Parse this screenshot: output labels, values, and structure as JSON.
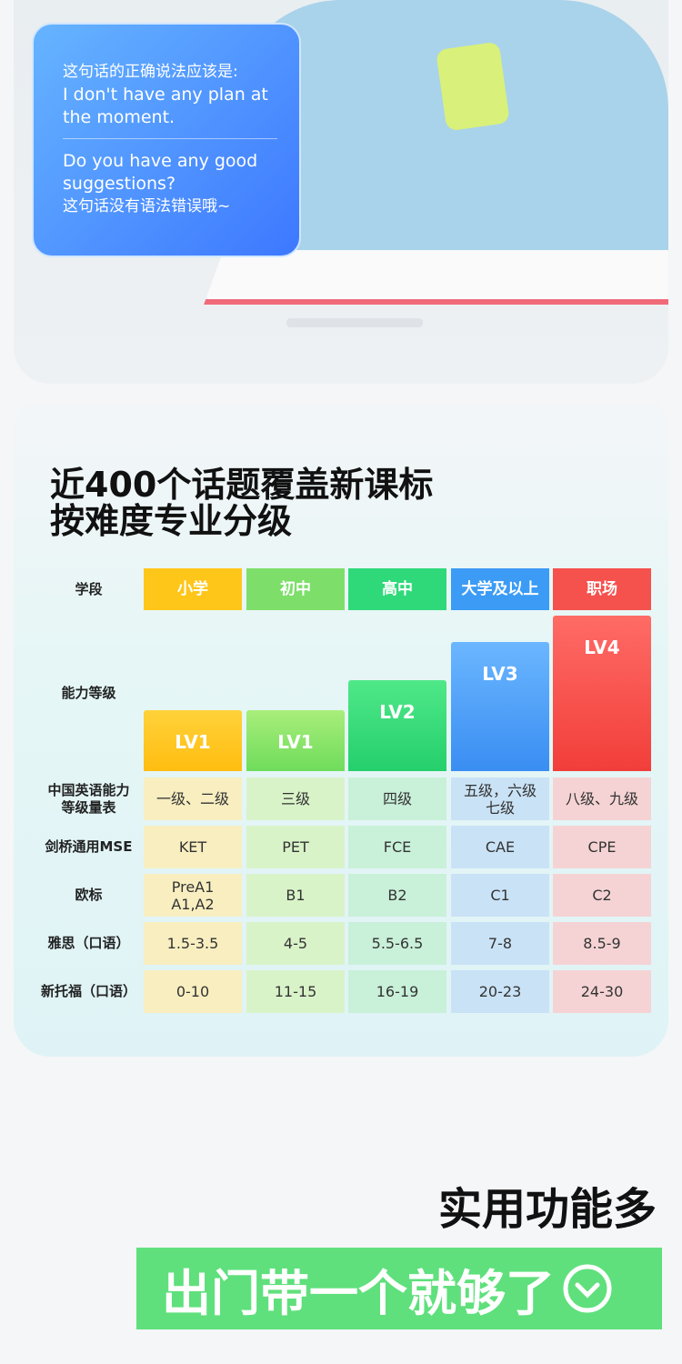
{
  "bubble": {
    "lines": [
      "这句话的正确说法应该是:",
      "I don't have any plan at the moment.",
      "Do you have any good suggestions?",
      "这句话没有语法错误哦~"
    ]
  },
  "heading": [
    "近400个话题覆盖新课标",
    "按难度专业分级"
  ],
  "table": {
    "stage_label": "学段",
    "stages": [
      "小学",
      "初中",
      "高中",
      "大学及以上",
      "职场"
    ],
    "level_label": "能力等级",
    "levels": [
      "LV1",
      "LV1",
      "LV2",
      "LV3",
      "LV4"
    ],
    "rows": [
      {
        "label": "中国英语能力\n等级量表",
        "cells": [
          "一级、二级",
          "三级",
          "四级",
          "五级，六级\n七级",
          "八级、九级"
        ]
      },
      {
        "label": "剑桥通用MSE",
        "cells": [
          "KET",
          "PET",
          "FCE",
          "CAE",
          "CPE"
        ]
      },
      {
        "label": "欧标",
        "cells": [
          "PreA1\nA1,A2",
          "B1",
          "B2",
          "C1",
          "C2"
        ]
      },
      {
        "label": "雅思（口语）",
        "cells": [
          "1.5-3.5",
          "4-5",
          "5.5-6.5",
          "7-8",
          "8.5-9"
        ]
      },
      {
        "label": "新托福（口语）",
        "cells": [
          "0-10",
          "11-15",
          "16-19",
          "20-23",
          "24-30"
        ]
      }
    ]
  },
  "footer": {
    "title": "实用功能多",
    "banner": "出门带一个就够了"
  }
}
